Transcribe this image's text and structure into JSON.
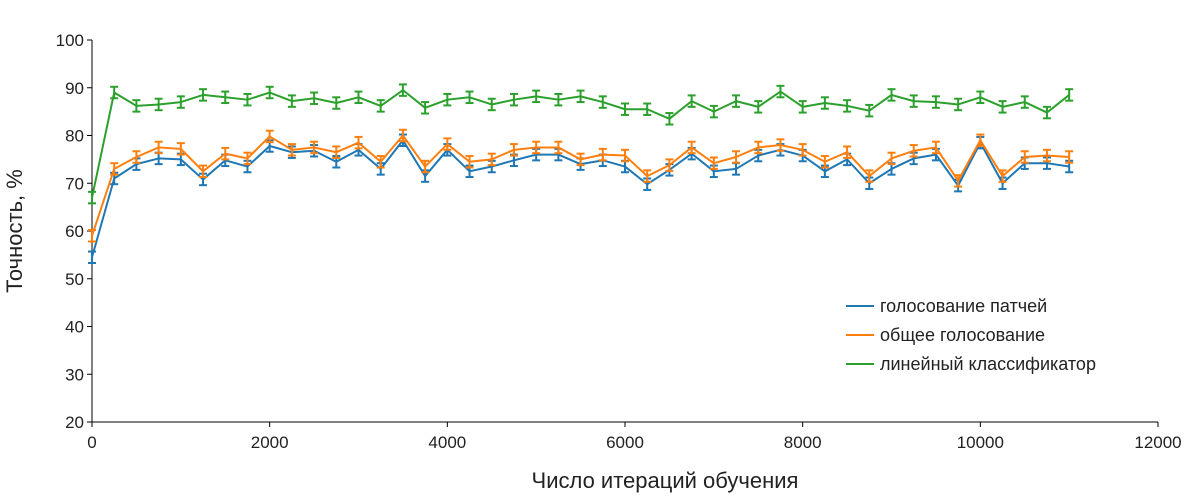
{
  "chart_data": {
    "type": "line",
    "title": "",
    "xlabel": "Число итераций обучения",
    "ylabel": "Точность, %",
    "xlim": [
      0,
      12000
    ],
    "ylim": [
      20,
      100
    ],
    "xticks": [
      0,
      2000,
      4000,
      6000,
      8000,
      10000,
      12000
    ],
    "yticks": [
      20,
      30,
      40,
      50,
      60,
      70,
      80,
      90,
      100
    ],
    "xtick_labels": [
      "0",
      "2000",
      "4000",
      "6000",
      "8000",
      "10000",
      "12000"
    ],
    "ytick_labels": [
      "20",
      "30",
      "40",
      "50",
      "60",
      "70",
      "80",
      "90",
      "100"
    ],
    "grid": false,
    "legend_position": "right",
    "x": [
      0,
      250,
      500,
      750,
      1000,
      1250,
      1500,
      1750,
      2000,
      2250,
      2500,
      2750,
      3000,
      3250,
      3500,
      3750,
      4000,
      4250,
      4500,
      4750,
      5000,
      5250,
      5500,
      5750,
      6000,
      6250,
      6500,
      6750,
      7000,
      7250,
      7500,
      7750,
      8000,
      8250,
      8500,
      8750,
      9000,
      9250,
      9500,
      9750,
      10000,
      10250,
      10500,
      10750,
      11000
    ],
    "series": [
      {
        "name": "голосование патчей",
        "color": "#1f77b4",
        "values": [
          54.5,
          71.0,
          74.0,
          75.2,
          75.0,
          70.8,
          74.8,
          73.5,
          77.8,
          76.5,
          76.8,
          74.5,
          77.0,
          73.0,
          79.0,
          71.5,
          77.0,
          72.5,
          73.5,
          74.8,
          76.0,
          76.0,
          74.0,
          74.8,
          73.5,
          69.8,
          72.8,
          76.2,
          72.5,
          73.0,
          75.8,
          77.0,
          75.8,
          72.5,
          75.0,
          70.0,
          73.0,
          75.2,
          76.0,
          69.5,
          78.5,
          70.0,
          74.2,
          74.2,
          73.5
        ],
        "error": [
          1.2,
          1.2,
          1.2,
          1.2,
          1.2,
          1.2,
          1.2,
          1.2,
          1.2,
          1.2,
          1.2,
          1.2,
          1.2,
          1.2,
          1.2,
          1.2,
          1.2,
          1.2,
          1.2,
          1.2,
          1.2,
          1.2,
          1.2,
          1.2,
          1.2,
          1.2,
          1.2,
          1.2,
          1.2,
          1.2,
          1.2,
          1.2,
          1.2,
          1.2,
          1.2,
          1.2,
          1.2,
          1.2,
          1.2,
          1.2,
          1.2,
          1.2,
          1.2,
          1.2,
          1.2
        ]
      },
      {
        "name": "общее голосование",
        "color": "#ff7f0e",
        "values": [
          59.0,
          73.0,
          75.5,
          77.5,
          77.2,
          72.5,
          76.2,
          75.2,
          79.8,
          77.0,
          77.5,
          76.5,
          78.5,
          74.5,
          80.0,
          73.5,
          78.2,
          74.5,
          75.0,
          77.0,
          77.5,
          77.5,
          75.0,
          76.0,
          75.8,
          71.5,
          73.8,
          77.5,
          74.2,
          75.5,
          77.5,
          78.0,
          77.0,
          74.5,
          76.5,
          71.5,
          75.2,
          76.8,
          77.5,
          70.5,
          79.0,
          71.5,
          75.5,
          75.8,
          75.5
        ],
        "error": [
          1.2,
          1.2,
          1.2,
          1.2,
          1.2,
          1.2,
          1.2,
          1.2,
          1.2,
          1.2,
          1.2,
          1.2,
          1.2,
          1.2,
          1.2,
          1.2,
          1.2,
          1.2,
          1.2,
          1.2,
          1.2,
          1.2,
          1.2,
          1.2,
          1.2,
          1.2,
          1.2,
          1.2,
          1.2,
          1.2,
          1.2,
          1.2,
          1.2,
          1.2,
          1.2,
          1.2,
          1.2,
          1.2,
          1.2,
          1.2,
          1.2,
          1.2,
          1.2,
          1.2,
          1.2
        ]
      },
      {
        "name": "линейный классификатор",
        "color": "#2ca02c",
        "values": [
          67.0,
          89.0,
          86.2,
          86.5,
          87.0,
          88.5,
          88.0,
          87.5,
          89.0,
          87.2,
          87.8,
          86.8,
          88.0,
          86.2,
          89.5,
          85.8,
          87.5,
          88.0,
          86.5,
          87.5,
          88.2,
          87.5,
          88.2,
          87.0,
          85.5,
          85.5,
          83.5,
          87.2,
          85.0,
          87.2,
          86.0,
          89.2,
          86.0,
          86.8,
          86.2,
          85.2,
          88.5,
          87.2,
          87.0,
          86.5,
          88.0,
          86.0,
          87.0,
          84.8,
          88.5
        ],
        "error": [
          1.2,
          1.2,
          1.2,
          1.2,
          1.2,
          1.2,
          1.2,
          1.2,
          1.2,
          1.2,
          1.2,
          1.2,
          1.2,
          1.2,
          1.2,
          1.2,
          1.2,
          1.2,
          1.2,
          1.2,
          1.2,
          1.2,
          1.2,
          1.2,
          1.2,
          1.2,
          1.2,
          1.2,
          1.2,
          1.2,
          1.2,
          1.2,
          1.2,
          1.2,
          1.2,
          1.2,
          1.2,
          1.2,
          1.2,
          1.2,
          1.2,
          1.2,
          1.2,
          1.2,
          1.2
        ]
      }
    ]
  }
}
